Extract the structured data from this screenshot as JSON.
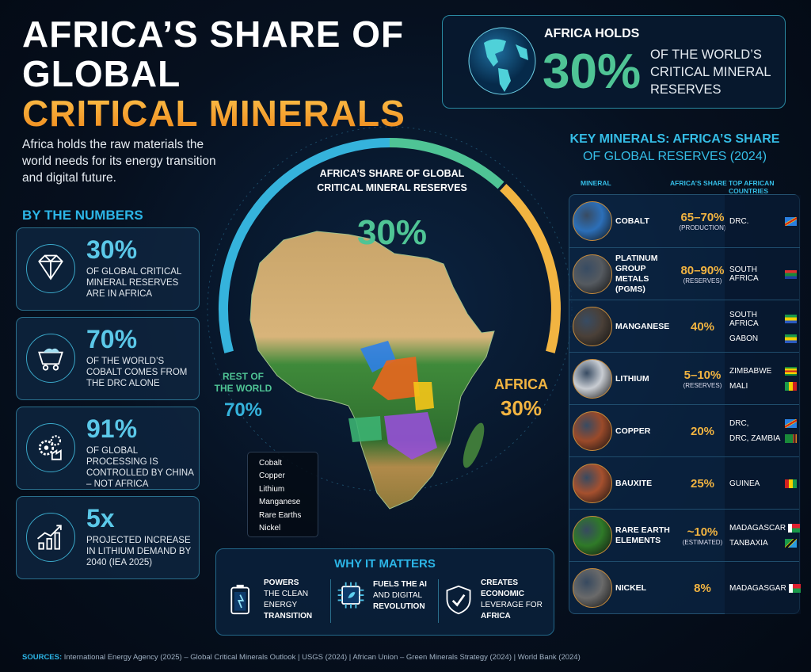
{
  "title": {
    "line1": "AFRICA’S SHARE OF",
    "line2": "GLOBAL",
    "line3": "CRITICAL MINERALS"
  },
  "subtitle": "Africa holds the raw materials the world needs for its energy transition and digital future.",
  "by_the_numbers": {
    "heading": "BY THE NUMBERS",
    "cards": [
      {
        "icon": "diamond-icon",
        "value": "30%",
        "text": "OF GLOBAL CRITICAL MINERAL RESERVES ARE IN AFRICA"
      },
      {
        "icon": "mine-cart-icon",
        "value": "70%",
        "text": "OF THE WORLD’S COBALT COMES FROM THE DRC ALONE"
      },
      {
        "icon": "gears-factory-icon",
        "value": "91%",
        "text": "OF GLOBAL PROCESSING IS CONTROLLED BY CHINA – NOT AFRICA"
      },
      {
        "icon": "growth-chart-icon",
        "value": "5x",
        "text": "PROJECTED INCREASE IN LITHIUM DEMAND BY 2040 (IEA 2025)"
      }
    ]
  },
  "top_box": {
    "label": "AFRICA HOLDS",
    "value": "30%",
    "text": "OF THE WORLD’S CRITICAL MINERAL RESERVES",
    "icon": "globe-icon"
  },
  "gauge": {
    "title": "AFRICA’S SHARE OF GLOBAL CRITICAL MINERAL RESERVES",
    "value": "30%",
    "rest_label": "REST OF THE WORLD",
    "rest_value": "70%",
    "africa_label": "AFRICA",
    "africa_value": "30%",
    "africa_share": 30,
    "colors": {
      "rest": "#35b3dc",
      "mid": "#4fc495",
      "africa": "#f2b441"
    }
  },
  "legend": [
    {
      "label": "Cobalt",
      "color": "#2f7fe8",
      "shape": "circle"
    },
    {
      "label": "Copper",
      "color": "#e8661e",
      "shape": "circle"
    },
    {
      "label": "Lithium",
      "color": "#3cb372",
      "shape": "circle"
    },
    {
      "label": "Manganese",
      "color": "#9b4de0",
      "shape": "triangle"
    },
    {
      "label": "Rare Earths",
      "color": "#f5c518",
      "shape": "diamond"
    },
    {
      "label": "Nickel",
      "color": "#b8bcc4",
      "shape": "circle"
    }
  ],
  "key_minerals": {
    "title1": "KEY MINERALS: AFRICA’S SHARE",
    "title2": "OF GLOBAL RESERVES (2024)",
    "headers": [
      "MINERAL",
      "AFRICA’S SHARE",
      "TOP AFRICAN COUNTRIES"
    ],
    "rows": [
      {
        "name": "COBALT",
        "share": "65–70%",
        "note": "(PRODUCTION)",
        "color": "#2c6fb8",
        "countries": [
          {
            "name": "DRC.",
            "flag": "drc"
          }
        ]
      },
      {
        "name": "PLATINUM GROUP METALS (PGMS)",
        "share": "80–90%",
        "note": "(RESERVES)",
        "color": "#555a60",
        "countries": [
          {
            "name": "SOUTH AFRICA",
            "flag": "za"
          }
        ]
      },
      {
        "name": "MANGANESE",
        "share": "40%",
        "note": "",
        "color": "#4a4038",
        "countries": [
          {
            "name": "SOUTH AFRICA",
            "flag": "ga"
          },
          {
            "name": "GABON",
            "flag": "ga"
          }
        ]
      },
      {
        "name": "LITHIUM",
        "share": "5–10%",
        "note": "(RESERVES)",
        "color": "#c8ccd2",
        "countries": [
          {
            "name": "ZIMBABWE",
            "flag": "zw"
          },
          {
            "name": "MALI",
            "flag": "ml"
          }
        ]
      },
      {
        "name": "COPPER",
        "share": "20%",
        "note": "",
        "color": "#9a4a2a",
        "countries": [
          {
            "name": "DRC,",
            "flag": "drc"
          },
          {
            "name": "DRC, ZAMBIA",
            "flag": "zm"
          }
        ]
      },
      {
        "name": "BAUXITE",
        "share": "25%",
        "note": "",
        "color": "#a5502e",
        "countries": [
          {
            "name": "GUINEA",
            "flag": "gn"
          }
        ]
      },
      {
        "name": "RARE EARTH ELEMENTS",
        "share": "~10%",
        "note": "(ESTIMATED)",
        "color": "#2f7a28",
        "countries": [
          {
            "name": "MADAGASCAR",
            "flag": "mg"
          },
          {
            "name": "TANBAXIA",
            "flag": "tz"
          }
        ]
      },
      {
        "name": "NICKEL",
        "share": "8%",
        "note": "",
        "color": "#6a6a6a",
        "countries": [
          {
            "name": "MADAGASGAR",
            "flag": "mg"
          }
        ]
      }
    ]
  },
  "why": {
    "heading": "WHY IT MATTERS",
    "items": [
      {
        "icon": "battery-icon",
        "l1": "POWERS",
        "l2": "THE CLEAN ENERGY",
        "l3": "TRANSITION"
      },
      {
        "icon": "chip-icon",
        "l1": "FUELS THE AI",
        "l2": "AND DIGITAL",
        "l3": "REVOLUTION"
      },
      {
        "icon": "shield-check-icon",
        "l1": "CREATES ECONOMIC",
        "l2": "LEVERAGE FOR",
        "l3": "AFRICA"
      }
    ]
  },
  "sources": {
    "label": "SOURCES:",
    "text": " International Energy Agency (2025) – Global Critical Minerals Outlook | USGS (2024) | African Union – Green Minerals Strategy (2024) | World Bank (2024)"
  }
}
